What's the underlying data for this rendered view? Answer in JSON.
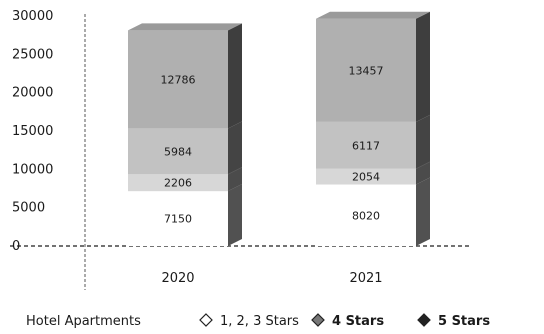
{
  "chart_data": {
    "type": "bar",
    "stacked": true,
    "categories": [
      "2020",
      "2021"
    ],
    "series": [
      {
        "name": "Hotel Apartments",
        "values": [
          7150,
          8020
        ],
        "labels": [
          "7150",
          "8020"
        ],
        "color": "#ffffff"
      },
      {
        "name": "1, 2, 3 Stars",
        "values": [
          2206,
          2054
        ],
        "labels": [
          "2206",
          "2054"
        ],
        "color": "#d7d7d7"
      },
      {
        "name": "4 Stars",
        "values": [
          5984,
          6117
        ],
        "labels": [
          "5984",
          "6117"
        ],
        "color": "#c2c2c2"
      },
      {
        "name": "5 Stars",
        "values": [
          12786,
          13457
        ],
        "labels": [
          "12786",
          "13457"
        ],
        "color": "#b0b0b0"
      }
    ],
    "yticks": [
      "0",
      "5000",
      "10000",
      "15000",
      "20000",
      "25000",
      "30000"
    ],
    "ylim": [
      0,
      30000
    ],
    "legend_position": "bottom",
    "legend_icons": [
      "none",
      "hollow-diamond-icon",
      "diamond-icon",
      "solid-diamond-icon"
    ]
  }
}
